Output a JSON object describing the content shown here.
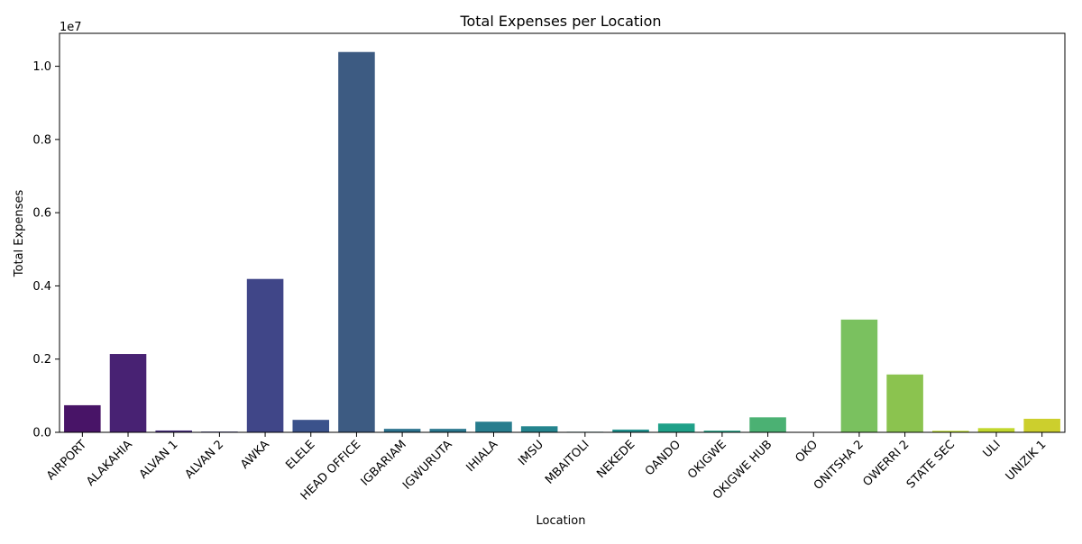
{
  "chart_data": {
    "type": "bar",
    "title": "Total Expenses per Location",
    "xlabel": "Location",
    "ylabel": "Total Expenses",
    "scale_label": "1e7",
    "ylim": [
      0,
      10900000
    ],
    "yticks": [
      0,
      2000000,
      4000000,
      6000000,
      8000000,
      10000000
    ],
    "ytick_labels": [
      "0.0",
      "0.2",
      "0.4",
      "0.6",
      "0.8",
      "1.0"
    ],
    "grid": false,
    "categories": [
      "AIRPORT",
      "ALAKAHIA",
      "ALVAN 1",
      "ALVAN 2",
      "AWKA",
      "ELELE",
      "HEAD OFFICE",
      "IGBARIAM",
      "IGWURUTA",
      "IHIALA",
      "IMSU",
      "MBAITOLI",
      "NEKEDE",
      "OANDO",
      "OKIGWE",
      "OKIGWE HUB",
      "OKO",
      "ONITSHA 2",
      "OWERRI 2",
      "STATE SEC",
      "ULI",
      "UNIZIK 1"
    ],
    "values": [
      740000,
      2140000,
      50000,
      20000,
      4190000,
      340000,
      10390000,
      95000,
      95000,
      290000,
      165000,
      15000,
      75000,
      240000,
      45000,
      410000,
      10000,
      3080000,
      1580000,
      40000,
      115000,
      370000
    ],
    "colors": [
      "#481467",
      "#482273",
      "#472e7c",
      "#433e85",
      "#404688",
      "#3b528b",
      "#3d5b82",
      "#2c728e",
      "#2a778e",
      "#287d8e",
      "#25848e",
      "#23898e",
      "#21908d",
      "#1fa088",
      "#20a386",
      "#4bb173",
      "#43bf71",
      "#7ac15f",
      "#8bc34f",
      "#bddf26",
      "#c1d72d",
      "#cccf2d"
    ]
  }
}
